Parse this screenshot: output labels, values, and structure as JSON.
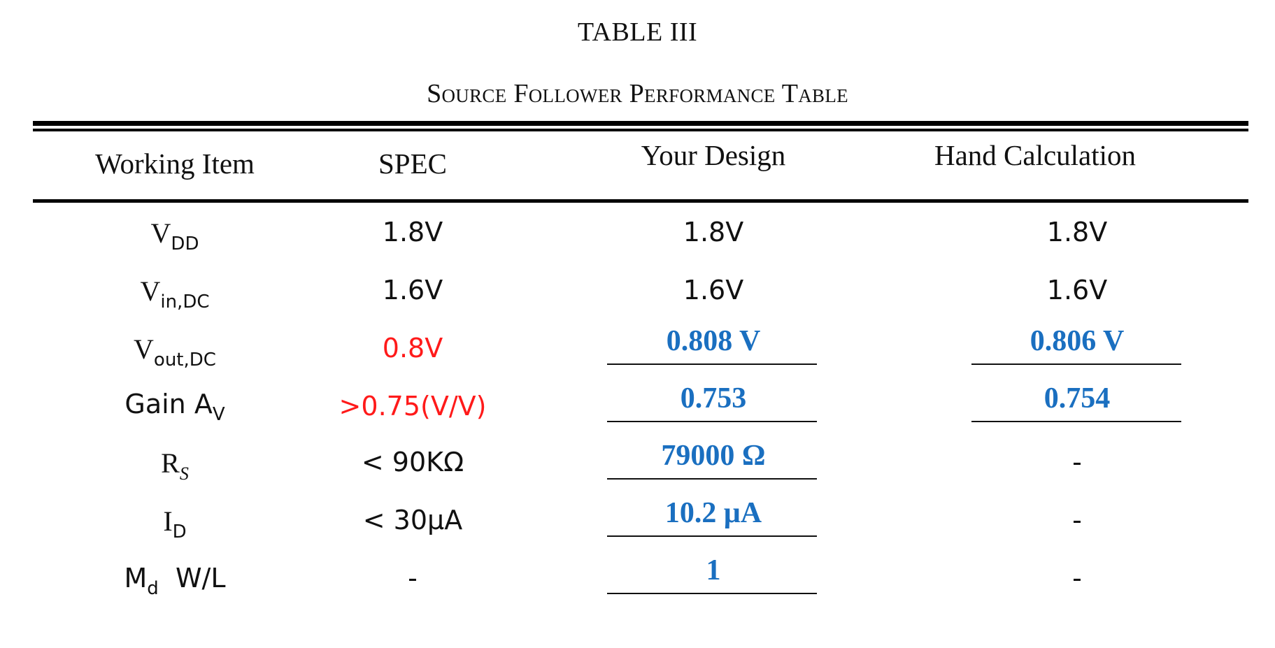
{
  "caption": {
    "number": "TABLE III",
    "title": "Source Follower Performance Table"
  },
  "columns": [
    "Working Item",
    "SPEC",
    "Your Design",
    "Hand Calculation"
  ],
  "rows": [
    {
      "item_main": "V",
      "item_sub": "DD",
      "spec": "1.8V",
      "design": "1.8V",
      "hand": "1.8V"
    },
    {
      "item_main": "V",
      "item_sub": "in,DC",
      "spec": "1.6V",
      "design": "1.6V",
      "hand": "1.6V"
    },
    {
      "item_main": "V",
      "item_sub": "out,DC",
      "spec": "0.8V",
      "design": "0.808 V",
      "hand": "0.806 V"
    },
    {
      "item_main": "Gain  A",
      "item_sub": "V",
      "spec": ">0.75(V/V)",
      "design": "0.753",
      "hand": "0.754"
    },
    {
      "item_main": "R",
      "item_sub": "S",
      "spec": "< 90KΩ",
      "design": "79000 Ω",
      "hand": "-"
    },
    {
      "item_main": "I",
      "item_sub": "D",
      "spec": "< 30μA",
      "design": "10.2 μA",
      "hand": "-"
    },
    {
      "item_main": "M",
      "item_sub": "d",
      "item_suffix": "  W/L",
      "spec": "-",
      "design": "1",
      "hand": "-"
    }
  ],
  "colors": {
    "spec_highlight": "#ff1a1a",
    "filled_value": "#1a6fc0",
    "text": "#111111"
  }
}
